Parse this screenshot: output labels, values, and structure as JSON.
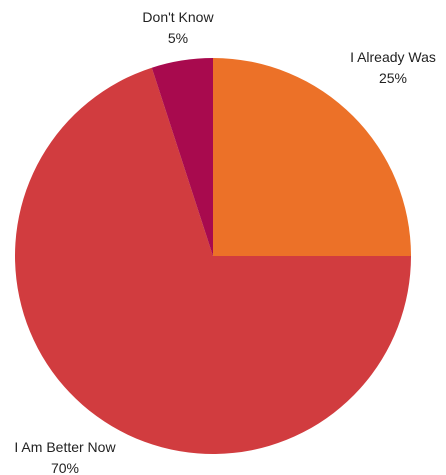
{
  "chart_data": {
    "type": "pie",
    "title": "",
    "start_angle_deg": 0,
    "direction": "clockwise",
    "slices": [
      {
        "label": "I Already Was",
        "value": 25,
        "value_label": "25%",
        "color": "#ec7128"
      },
      {
        "label": "I Am Better Now",
        "value": 70,
        "value_label": "70%",
        "color": "#d13c3f"
      },
      {
        "label": "Don't Know",
        "value": 5,
        "value_label": "5%",
        "color": "#a80a4e"
      }
    ]
  }
}
